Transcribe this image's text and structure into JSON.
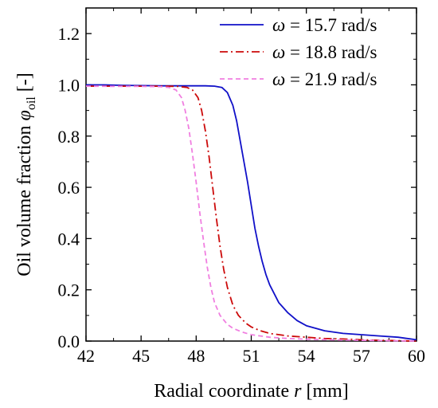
{
  "chart_data": {
    "type": "line",
    "xlabel": {
      "main": "Radial coordinate ",
      "symbol": "r",
      "unit": " [mm]"
    },
    "ylabel": {
      "main": "Oil volume fraction ",
      "symbol": "φ",
      "subscript": "oil",
      "unit": " [-]"
    },
    "xlim": [
      42,
      60
    ],
    "ylim": [
      0,
      1.3
    ],
    "xticks": [
      42,
      45,
      48,
      51,
      54,
      57,
      60
    ],
    "yticks": [
      "0.0",
      "0.2",
      "0.4",
      "0.6",
      "0.8",
      "1.0",
      "1.2"
    ],
    "legend_position": "top-right",
    "grid": false,
    "series": [
      {
        "name": "ω = 15.7 rad/s",
        "omega_symbol": "ω",
        "label_rest": " = 15.7 rad/s",
        "color": "#1010c8",
        "dash": "",
        "points": [
          [
            42,
            1.0
          ],
          [
            43,
            1.0
          ],
          [
            44,
            0.998
          ],
          [
            45,
            0.997
          ],
          [
            46,
            0.996
          ],
          [
            47,
            0.996
          ],
          [
            48,
            0.996
          ],
          [
            48.5,
            0.996
          ],
          [
            49,
            0.995
          ],
          [
            49.4,
            0.99
          ],
          [
            49.7,
            0.97
          ],
          [
            50,
            0.92
          ],
          [
            50.2,
            0.86
          ],
          [
            50.4,
            0.78
          ],
          [
            50.6,
            0.7
          ],
          [
            50.8,
            0.62
          ],
          [
            51,
            0.53
          ],
          [
            51.2,
            0.44
          ],
          [
            51.4,
            0.37
          ],
          [
            51.6,
            0.31
          ],
          [
            51.8,
            0.26
          ],
          [
            52,
            0.22
          ],
          [
            52.5,
            0.15
          ],
          [
            53,
            0.11
          ],
          [
            53.5,
            0.08
          ],
          [
            54,
            0.06
          ],
          [
            55,
            0.04
          ],
          [
            56,
            0.03
          ],
          [
            57,
            0.025
          ],
          [
            58,
            0.02
          ],
          [
            59,
            0.015
          ],
          [
            60,
            0.005
          ]
        ]
      },
      {
        "name": "ω = 18.8 rad/s",
        "omega_symbol": "ω",
        "label_rest": " = 18.8 rad/s",
        "color": "#cc0a0a",
        "dash": "10,4,2,4",
        "points": [
          [
            42,
            0.995
          ],
          [
            44,
            0.995
          ],
          [
            46,
            0.995
          ],
          [
            47,
            0.994
          ],
          [
            47.5,
            0.99
          ],
          [
            47.8,
            0.98
          ],
          [
            48.1,
            0.95
          ],
          [
            48.3,
            0.9
          ],
          [
            48.5,
            0.82
          ],
          [
            48.7,
            0.72
          ],
          [
            48.9,
            0.6
          ],
          [
            49.1,
            0.48
          ],
          [
            49.3,
            0.37
          ],
          [
            49.5,
            0.28
          ],
          [
            49.7,
            0.21
          ],
          [
            50,
            0.14
          ],
          [
            50.3,
            0.1
          ],
          [
            50.7,
            0.07
          ],
          [
            51,
            0.055
          ],
          [
            51.5,
            0.04
          ],
          [
            52,
            0.03
          ],
          [
            53,
            0.02
          ],
          [
            54,
            0.015
          ],
          [
            55,
            0.01
          ],
          [
            56,
            0.008
          ],
          [
            57,
            0.005
          ],
          [
            58,
            0.003
          ],
          [
            60,
            0.0
          ]
        ]
      },
      {
        "name": "ω = 21.9 rad/s",
        "omega_symbol": "ω",
        "label_rest": " = 21.9 rad/s",
        "color": "#f07ee0",
        "dash": "6,4",
        "points": [
          [
            42,
            0.995
          ],
          [
            44,
            0.994
          ],
          [
            45,
            0.994
          ],
          [
            46,
            0.993
          ],
          [
            46.5,
            0.99
          ],
          [
            46.9,
            0.98
          ],
          [
            47.2,
            0.95
          ],
          [
            47.4,
            0.9
          ],
          [
            47.6,
            0.83
          ],
          [
            47.8,
            0.73
          ],
          [
            48,
            0.62
          ],
          [
            48.2,
            0.5
          ],
          [
            48.4,
            0.39
          ],
          [
            48.6,
            0.29
          ],
          [
            48.8,
            0.21
          ],
          [
            49,
            0.15
          ],
          [
            49.3,
            0.1
          ],
          [
            49.7,
            0.065
          ],
          [
            50,
            0.05
          ],
          [
            50.5,
            0.035
          ],
          [
            51,
            0.025
          ],
          [
            52,
            0.015
          ],
          [
            53,
            0.01
          ],
          [
            54,
            0.007
          ],
          [
            56,
            0.004
          ],
          [
            58,
            0.002
          ],
          [
            60,
            0.0
          ]
        ]
      }
    ]
  }
}
